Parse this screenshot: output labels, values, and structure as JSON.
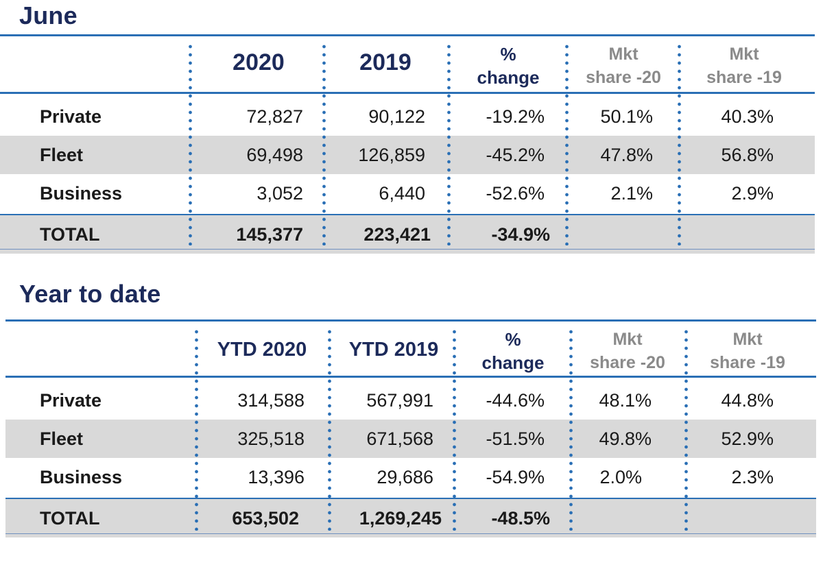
{
  "june": {
    "title": "June",
    "headers": {
      "col1": "2020",
      "col2": "2019",
      "pct_line1": "%",
      "pct_line2": "change",
      "mkt20_line1": "Mkt",
      "mkt20_line2": "share -20",
      "mkt19_line1": "Mkt",
      "mkt19_line2": "share -19"
    },
    "rows": [
      {
        "label": "Private",
        "v2020": "72,827",
        "v2019": "90,122",
        "change": "-19.2%",
        "share20": "50.1%",
        "share19": "40.3%"
      },
      {
        "label": "Fleet",
        "v2020": "69,498",
        "v2019": "126,859",
        "change": "-45.2%",
        "share20": "47.8%",
        "share19": "56.8%"
      },
      {
        "label": "Business",
        "v2020": "3,052",
        "v2019": "6,440",
        "change": "-52.6%",
        "share20": "2.1%",
        "share19": "2.9%"
      }
    ],
    "total": {
      "label": "TOTAL",
      "v2020": "145,377",
      "v2019": "223,421",
      "change": "-34.9%"
    }
  },
  "ytd": {
    "title": "Year to date",
    "headers": {
      "col1": "YTD 2020",
      "col2": "YTD 2019",
      "pct_line1": "%",
      "pct_line2": "change",
      "mkt20_line1": "Mkt",
      "mkt20_line2": "share -20",
      "mkt19_line1": "Mkt",
      "mkt19_line2": "share -19"
    },
    "rows": [
      {
        "label": "Private",
        "v2020": "314,588",
        "v2019": "567,991",
        "change": "-44.6%",
        "share20": "48.1%",
        "share19": "44.8%"
      },
      {
        "label": "Fleet",
        "v2020": "325,518",
        "v2019": "671,568",
        "change": "-51.5%",
        "share20": "49.8%",
        "share19": "52.9%"
      },
      {
        "label": "Business",
        "v2020": "13,396",
        "v2019": "29,686",
        "change": "-54.9%",
        "share20": "2.0%",
        "share19": "2.3%"
      }
    ],
    "total": {
      "label": "TOTAL",
      "v2020": "653,502",
      "v2019": "1,269,245",
      "change": "-48.5%"
    }
  },
  "colors": {
    "accent": "#2a6fb5",
    "title": "#1c2a5a",
    "shade": "#d9d9d9",
    "muted": "#8a8a8a"
  }
}
